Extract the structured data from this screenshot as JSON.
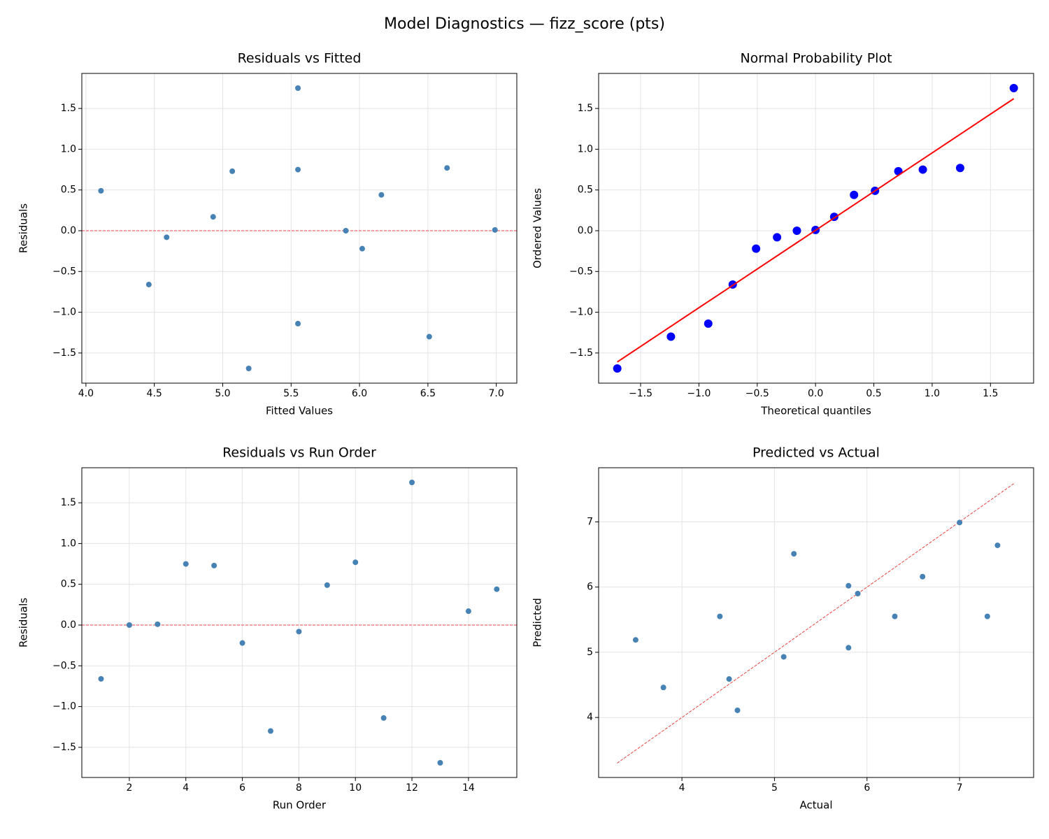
{
  "title": "Model Diagnostics — fizz_score (pts)",
  "chart_data": [
    {
      "type": "scatter",
      "title": "Residuals vs Fitted",
      "xlabel": "Fitted Values",
      "ylabel": "Residuals",
      "xlim": [
        3.97,
        7.15
      ],
      "ylim": [
        -1.87,
        1.93
      ],
      "xticks": [
        {
          "value": 4.0,
          "label": "4.0"
        },
        4.5,
        {
          "value": 5.0,
          "label": "5.0"
        },
        5.5,
        {
          "value": 6.0,
          "label": "6.0"
        },
        6.5,
        {
          "value": 7.0,
          "label": "7.0"
        }
      ],
      "yticks": [
        {
          "value": -1.5,
          "label": "−1.5"
        },
        {
          "value": -1.0,
          "label": "−1.0"
        },
        {
          "value": -0.5,
          "label": "−0.5"
        },
        {
          "value": 0.0,
          "label": "0.0"
        },
        0.5,
        {
          "value": 1.0,
          "label": "1.0"
        },
        1.5
      ],
      "grid": true,
      "reference_y": 0,
      "reference_color": "#e8413c",
      "series": [
        {
          "type": "scatter",
          "color": "#4682b4",
          "x": [
            4.46,
            5.9,
            6.99,
            5.55,
            5.07,
            6.02,
            6.51,
            4.59,
            4.11,
            6.64,
            5.55,
            5.55,
            5.19,
            4.93,
            6.16
          ],
          "values": [
            -0.66,
            0.0,
            0.01,
            0.75,
            0.73,
            -0.22,
            -1.3,
            -0.08,
            0.49,
            0.77,
            -1.14,
            1.75,
            -1.69,
            0.17,
            0.44
          ]
        }
      ]
    },
    {
      "type": "scatter",
      "title": "Normal Probability Plot",
      "xlabel": "Theoretical quantiles",
      "ylabel": "Ordered Values",
      "xlim": [
        -1.86,
        1.87
      ],
      "ylim": [
        -1.87,
        1.93
      ],
      "xticks": [
        {
          "value": -1.5,
          "label": "−1.5"
        },
        {
          "value": -1.0,
          "label": "−1.0"
        },
        {
          "value": -0.5,
          "label": "−0.5"
        },
        {
          "value": 0.0,
          "label": "0.0"
        },
        0.5,
        {
          "value": 1.0,
          "label": "1.0"
        },
        1.5
      ],
      "yticks": [
        {
          "value": -1.5,
          "label": "−1.5"
        },
        {
          "value": -1.0,
          "label": "−1.0"
        },
        {
          "value": -0.5,
          "label": "−0.5"
        },
        {
          "value": 0.0,
          "label": "0.0"
        },
        0.5,
        {
          "value": 1.0,
          "label": "1.0"
        },
        1.5
      ],
      "grid": true,
      "series": [
        {
          "type": "scatter",
          "color": "#0000ff",
          "x": [
            -1.7,
            -1.24,
            -0.92,
            -0.71,
            -0.51,
            -0.33,
            -0.16,
            0.0,
            0.16,
            0.33,
            0.51,
            0.71,
            0.92,
            1.24,
            1.7
          ],
          "values": [
            -1.69,
            -1.3,
            -1.14,
            -0.66,
            -0.22,
            -0.08,
            0.0,
            0.01,
            0.17,
            0.44,
            0.49,
            0.73,
            0.75,
            0.77,
            1.75
          ]
        },
        {
          "type": "line",
          "color": "#ff0000",
          "x": [
            -1.7,
            1.7
          ],
          "values": [
            -1.61,
            1.62
          ]
        }
      ]
    },
    {
      "type": "scatter",
      "title": "Residuals vs Run Order",
      "xlabel": "Run Order",
      "ylabel": "Residuals",
      "xlim": [
        0.32,
        15.71
      ],
      "ylim": [
        -1.87,
        1.93
      ],
      "xticks": [
        2,
        4,
        6,
        8,
        10,
        12,
        14
      ],
      "yticks": [
        {
          "value": -1.5,
          "label": "−1.5"
        },
        {
          "value": -1.0,
          "label": "−1.0"
        },
        {
          "value": -0.5,
          "label": "−0.5"
        },
        {
          "value": 0.0,
          "label": "0.0"
        },
        0.5,
        {
          "value": 1.0,
          "label": "1.0"
        },
        1.5
      ],
      "grid": true,
      "reference_y": 0,
      "reference_color": "#e8413c",
      "series": [
        {
          "type": "scatter",
          "color": "#4682b4",
          "x": [
            1,
            2,
            3,
            4,
            5,
            6,
            7,
            8,
            9,
            10,
            11,
            12,
            13,
            14,
            15
          ],
          "values": [
            -0.66,
            0.0,
            0.01,
            0.75,
            0.73,
            -0.22,
            -1.3,
            -0.08,
            0.49,
            0.77,
            -1.14,
            1.75,
            -1.69,
            0.17,
            0.44
          ]
        }
      ]
    },
    {
      "type": "scatter",
      "title": "Predicted vs Actual",
      "xlabel": "Actual",
      "ylabel": "Predicted",
      "xlim": [
        3.1,
        7.8
      ],
      "ylim": [
        3.08,
        7.83
      ],
      "xticks": [
        4,
        5,
        6,
        7
      ],
      "yticks": [
        4,
        5,
        6,
        7
      ],
      "grid": true,
      "reference_color": "#e8413c",
      "reference_line": {
        "x": [
          3.3,
          7.6
        ],
        "y": [
          3.3,
          7.6
        ]
      },
      "series": [
        {
          "type": "scatter",
          "color": "#4682b4",
          "x": [
            3.8,
            5.9,
            7.0,
            6.3,
            5.8,
            5.8,
            5.21,
            4.51,
            4.6,
            7.41,
            4.41,
            7.3,
            3.5,
            5.1,
            6.6
          ],
          "values": [
            4.46,
            5.9,
            6.99,
            5.55,
            5.07,
            6.02,
            6.51,
            4.59,
            4.11,
            6.64,
            5.55,
            5.55,
            5.19,
            4.93,
            6.16
          ]
        }
      ]
    }
  ]
}
